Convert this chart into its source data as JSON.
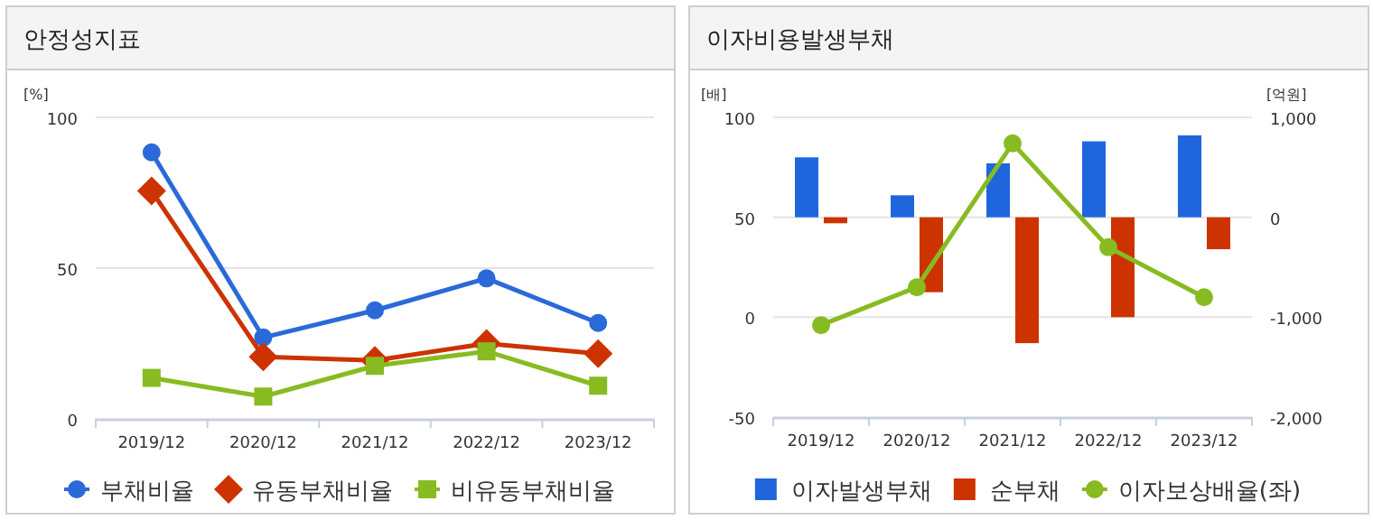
{
  "chart_data": [
    {
      "type": "line",
      "title": "안정성지표",
      "ylabel": "[%]",
      "categories": [
        "2019/12",
        "2020/12",
        "2021/12",
        "2022/12",
        "2023/12"
      ],
      "ylim": [
        0,
        100
      ],
      "yticks": [
        0,
        50,
        100
      ],
      "grid": "y",
      "legend": "bottom",
      "series": [
        {
          "name": "부채비율",
          "color": "#2a6ad8",
          "marker": "circle",
          "values": [
            88.4,
            27,
            36,
            46.6,
            31.8
          ]
        },
        {
          "name": "유동부채비율",
          "color": "#cc3300",
          "marker": "diamond",
          "values": [
            75.6,
            20.6,
            19.4,
            25,
            21.6
          ]
        },
        {
          "name": "비유동부채비율",
          "color": "#88bb22",
          "marker": "square",
          "values": [
            13.6,
            7.4,
            17.6,
            22.4,
            11
          ]
        }
      ]
    },
    {
      "type": "bar",
      "title": "이자비용발생부채",
      "ylabel": "[배]",
      "y2label": "[억원]",
      "categories": [
        "2019/12",
        "2020/12",
        "2021/12",
        "2022/12",
        "2023/12"
      ],
      "ylim": [
        -50,
        100
      ],
      "yticks": [
        -50,
        0,
        50,
        100
      ],
      "y2lim": [
        -2000,
        1000
      ],
      "y2ticks": [
        {
          "value": -2000,
          "label": "-2,000"
        },
        {
          "value": -1000,
          "label": "-1,000"
        },
        {
          "value": 0,
          "label": "0"
        },
        {
          "value": 1000,
          "label": "1,000"
        }
      ],
      "grid": "y",
      "legend": "bottom",
      "series": [
        {
          "name": "이자발생부채",
          "color": "#1f66dd",
          "axis": "y2",
          "values": [
            600,
            220,
            540,
            760,
            820
          ]
        },
        {
          "name": "순부채",
          "color": "#cc3300",
          "axis": "y2",
          "values": [
            -60,
            -750,
            -1260,
            -1000,
            -320
          ]
        },
        {
          "name": "이자보상배율(좌)",
          "type": "line",
          "marker": "circle",
          "color": "#88bb22",
          "values": [
            -4,
            15,
            87,
            35,
            10
          ]
        }
      ]
    }
  ]
}
